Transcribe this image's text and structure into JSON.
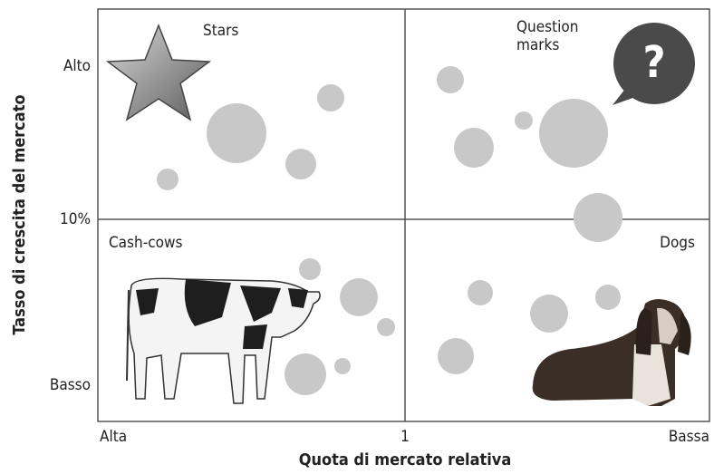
{
  "title_y": "Tasso di crescita del mercato",
  "title_x": "Quota di mercato relativa",
  "y_labels": [
    "Alto",
    "10%",
    "Basso"
  ],
  "x_labels": [
    "Alta",
    "1",
    "Bassa"
  ],
  "quadrants": [
    "Stars",
    "Question marks",
    "Cash-cows",
    "Dogs"
  ],
  "speech": "?"
}
